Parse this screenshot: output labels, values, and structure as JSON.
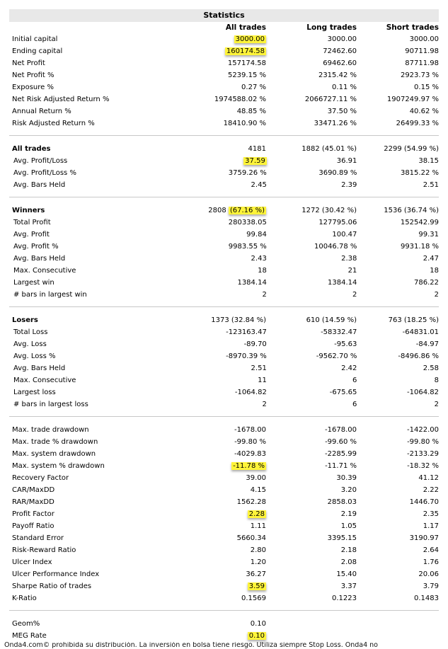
{
  "title": "Statistics",
  "columns": [
    "All trades",
    "Long trades",
    "Short trades"
  ],
  "sections": [
    {
      "rows": [
        {
          "label": "Initial capital",
          "all": "3000.00",
          "long": "3000.00",
          "short": "3000.00",
          "hl": true
        },
        {
          "label": "Ending capital",
          "all": "160174.58",
          "long": "72462.60",
          "short": "90711.98",
          "hl": true
        },
        {
          "label": "Net Profit",
          "all": "157174.58",
          "long": "69462.60",
          "short": "87711.98"
        },
        {
          "label": "Net Profit %",
          "all": "5239.15 %",
          "long": "2315.42 %",
          "short": "2923.73 %"
        },
        {
          "label": "Exposure %",
          "all": "0.27 %",
          "long": "0.11 %",
          "short": "0.15 %"
        },
        {
          "label": "Net Risk Adjusted Return %",
          "all": "1974588.02 %",
          "long": "2066727.11 %",
          "short": "1907249.97 %"
        },
        {
          "label": "Annual Return %",
          "all": "48.85 %",
          "long": "37.50 %",
          "short": "40.62 %"
        },
        {
          "label": "Risk Adjusted Return %",
          "all": "18410.90 %",
          "long": "33471.26 %",
          "short": "26499.33 %"
        }
      ]
    },
    {
      "rows": [
        {
          "label": "All trades",
          "all": "4181",
          "long": "1882 (45.01 %)",
          "short": "2299 (54.99 %)",
          "main": true
        },
        {
          "label": "Avg. Profit/Loss",
          "all": "37.59",
          "long": "36.91",
          "short": "38.15",
          "hl": true,
          "sub": true
        },
        {
          "label": "Avg. Profit/Loss %",
          "all": "3759.26 %",
          "long": "3690.89 %",
          "short": "3815.22 %",
          "sub": true
        },
        {
          "label": "Avg. Bars Held",
          "all": "2.45",
          "long": "2.39",
          "short": "2.51",
          "sub": true
        }
      ]
    },
    {
      "rows": [
        {
          "label": "Winners",
          "all_pre": "2808 ",
          "all": "(67.16 %)",
          "long": "1272 (30.42 %)",
          "short": "1536 (36.74 %)",
          "main": true,
          "hl": true
        },
        {
          "label": "Total Profit",
          "all": "280338.05",
          "long": "127795.06",
          "short": "152542.99",
          "sub": true
        },
        {
          "label": "Avg. Profit",
          "all": "99.84",
          "long": "100.47",
          "short": "99.31",
          "sub": true
        },
        {
          "label": "Avg. Profit %",
          "all": "9983.55 %",
          "long": "10046.78 %",
          "short": "9931.18 %",
          "sub": true
        },
        {
          "label": "Avg. Bars Held",
          "all": "2.43",
          "long": "2.38",
          "short": "2.47",
          "sub": true
        },
        {
          "label": "Max. Consecutive",
          "all": "18",
          "long": "21",
          "short": "18",
          "sub": true
        },
        {
          "label": "Largest win",
          "all": "1384.14",
          "long": "1384.14",
          "short": "786.22",
          "sub": true
        },
        {
          "label": "# bars in largest win",
          "all": "2",
          "long": "2",
          "short": "2",
          "sub": true
        }
      ]
    },
    {
      "rows": [
        {
          "label": "Losers",
          "all": "1373 (32.84 %)",
          "long": "610 (14.59 %)",
          "short": "763 (18.25 %)",
          "main": true
        },
        {
          "label": "Total Loss",
          "all": "-123163.47",
          "long": "-58332.47",
          "short": "-64831.01",
          "sub": true
        },
        {
          "label": "Avg. Loss",
          "all": "-89.70",
          "long": "-95.63",
          "short": "-84.97",
          "sub": true
        },
        {
          "label": "Avg. Loss %",
          "all": "-8970.39 %",
          "long": "-9562.70 %",
          "short": "-8496.86 %",
          "sub": true
        },
        {
          "label": "Avg. Bars Held",
          "all": "2.51",
          "long": "2.42",
          "short": "2.58",
          "sub": true
        },
        {
          "label": "Max. Consecutive",
          "all": "11",
          "long": "6",
          "short": "8",
          "sub": true
        },
        {
          "label": "Largest loss",
          "all": "-1064.82",
          "long": "-675.65",
          "short": "-1064.82",
          "sub": true
        },
        {
          "label": "# bars in largest loss",
          "all": "2",
          "long": "6",
          "short": "2",
          "sub": true
        }
      ]
    },
    {
      "rows": [
        {
          "label": "Max. trade drawdown",
          "all": "-1678.00",
          "long": "-1678.00",
          "short": "-1422.00"
        },
        {
          "label": "Max. trade % drawdown",
          "all": "-99.80 %",
          "long": "-99.60 %",
          "short": "-99.80 %"
        },
        {
          "label": "Max. system drawdown",
          "all": "-4029.83",
          "long": "-2285.99",
          "short": "-2133.29"
        },
        {
          "label": "Max. system % drawdown",
          "all": "-11.78 %",
          "long": "-11.71 %",
          "short": "-18.32 %",
          "hl": true
        },
        {
          "label": "Recovery Factor",
          "all": "39.00",
          "long": "30.39",
          "short": "41.12"
        },
        {
          "label": "CAR/MaxDD",
          "all": "4.15",
          "long": "3.20",
          "short": "2.22"
        },
        {
          "label": "RAR/MaxDD",
          "all": "1562.28",
          "long": "2858.03",
          "short": "1446.70"
        },
        {
          "label": "Profit Factor",
          "all": "2.28",
          "long": "2.19",
          "short": "2.35",
          "hl": true
        },
        {
          "label": "Payoff Ratio",
          "all": "1.11",
          "long": "1.05",
          "short": "1.17"
        },
        {
          "label": "Standard Error",
          "all": "5660.34",
          "long": "3395.15",
          "short": "3190.97"
        },
        {
          "label": "Risk-Reward Ratio",
          "all": "2.80",
          "long": "2.18",
          "short": "2.64"
        },
        {
          "label": "Ulcer Index",
          "all": "1.20",
          "long": "2.08",
          "short": "1.76"
        },
        {
          "label": "Ulcer Performance Index",
          "all": "36.27",
          "long": "15.40",
          "short": "20.06"
        },
        {
          "label": "Sharpe Ratio of trades",
          "all": "3.59",
          "long": "3.37",
          "short": "3.79",
          "hl": true
        },
        {
          "label": "K-Ratio",
          "all": "0.1569",
          "long": "0.1223",
          "short": "0.1483"
        }
      ]
    },
    {
      "rows": [
        {
          "label": "Geom%",
          "all": "0.10",
          "long": "",
          "short": ""
        },
        {
          "label": "MEG Rate",
          "all": "0.10",
          "long": "",
          "short": "",
          "hl": true
        }
      ]
    }
  ],
  "footer": "Onda4.com© prohibida su distribución. La inversión en bolsa tiene riesgo. Utiliza siempre Stop Loss. Onda4 no"
}
